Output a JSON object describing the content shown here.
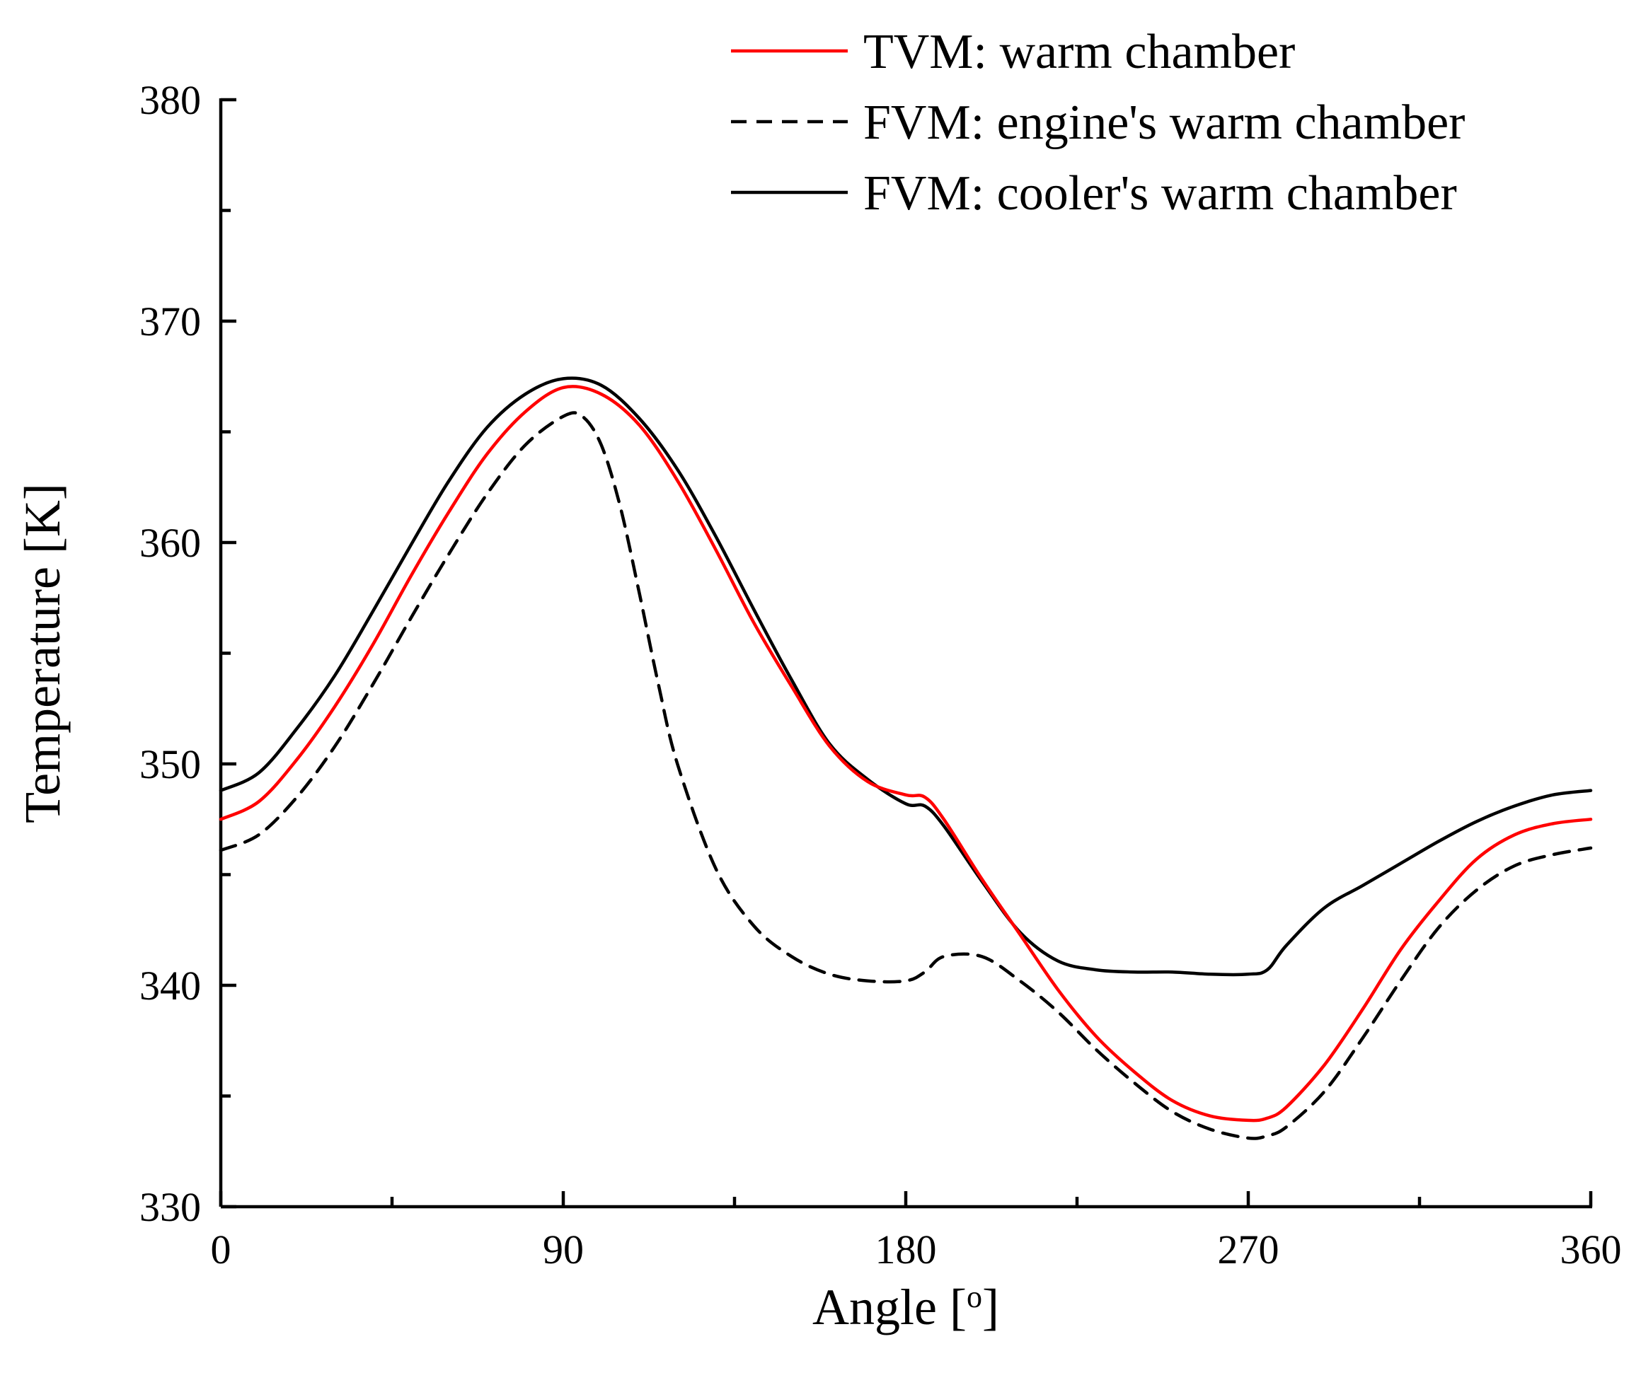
{
  "chart_data": {
    "type": "line",
    "xlabel": "Angle [",
    "xlabel_sup": "o",
    "xlabel_end": "]",
    "ylabel": "Temperature [K]",
    "xlim": [
      0,
      360
    ],
    "ylim": [
      330,
      380
    ],
    "xticks": [
      0,
      90,
      180,
      270,
      360
    ],
    "xtick_labels": [
      "0",
      "90",
      "180",
      "270",
      "360"
    ],
    "yticks": [
      330,
      340,
      350,
      360,
      370,
      380
    ],
    "ytick_labels": [
      "330",
      "340",
      "350",
      "360",
      "370",
      "380"
    ],
    "minor_x_step": 45,
    "minor_y_step": 5,
    "grid": false,
    "legend_position": "top-right",
    "series": [
      {
        "name": "TVM: warm chamber",
        "color": "#ff0000",
        "dash": "solid",
        "x": [
          0,
          10,
          20,
          30,
          40,
          50,
          60,
          70,
          80,
          90,
          100,
          110,
          120,
          130,
          140,
          150,
          160,
          170,
          180,
          185,
          190,
          200,
          210,
          220,
          230,
          240,
          250,
          260,
          270,
          275,
          280,
          290,
          300,
          310,
          320,
          330,
          340,
          350,
          360
        ],
        "y": [
          347.5,
          348.3,
          350.2,
          352.6,
          355.4,
          358.5,
          361.4,
          364.0,
          365.9,
          367.0,
          366.7,
          365.3,
          362.8,
          359.7,
          356.4,
          353.5,
          350.8,
          349.2,
          348.6,
          348.5,
          347.5,
          344.8,
          342.3,
          339.8,
          337.7,
          336.1,
          334.8,
          334.1,
          333.9,
          334.0,
          334.5,
          336.4,
          338.9,
          341.6,
          343.8,
          345.7,
          346.8,
          347.3,
          347.5
        ]
      },
      {
        "name": "FVM: engine's warm chamber",
        "color": "#000000",
        "dash": "dashed",
        "x": [
          0,
          10,
          20,
          30,
          40,
          50,
          60,
          70,
          80,
          90,
          95,
          100,
          105,
          110,
          115,
          120,
          130,
          140,
          150,
          160,
          170,
          180,
          185,
          190,
          200,
          210,
          220,
          230,
          240,
          250,
          260,
          270,
          275,
          280,
          290,
          300,
          310,
          320,
          330,
          340,
          350,
          360
        ],
        "y": [
          346.1,
          346.8,
          348.5,
          350.8,
          353.6,
          356.6,
          359.5,
          362.2,
          364.4,
          365.7,
          365.7,
          364.4,
          361.6,
          357.7,
          353.6,
          350.0,
          345.3,
          342.7,
          341.3,
          340.5,
          340.2,
          340.2,
          340.6,
          341.3,
          341.3,
          340.2,
          338.8,
          337.1,
          335.6,
          334.3,
          333.5,
          333.1,
          333.2,
          333.6,
          335.2,
          337.6,
          340.2,
          342.6,
          344.3,
          345.4,
          345.9,
          346.2
        ]
      },
      {
        "name": "FVM: cooler's warm chamber",
        "color": "#000000",
        "dash": "solid",
        "x": [
          0,
          10,
          20,
          30,
          40,
          50,
          60,
          70,
          80,
          90,
          100,
          110,
          120,
          130,
          140,
          150,
          160,
          170,
          180,
          185,
          190,
          200,
          210,
          220,
          230,
          240,
          250,
          260,
          270,
          275,
          280,
          290,
          300,
          310,
          320,
          330,
          340,
          350,
          360
        ],
        "y": [
          348.8,
          349.6,
          351.6,
          354.0,
          356.9,
          359.9,
          362.8,
          365.2,
          366.7,
          367.4,
          367.1,
          365.6,
          363.3,
          360.3,
          357.0,
          353.8,
          350.9,
          349.3,
          348.2,
          348.1,
          347.2,
          344.7,
          342.4,
          341.1,
          340.7,
          340.6,
          340.6,
          340.5,
          340.5,
          340.7,
          341.8,
          343.5,
          344.5,
          345.5,
          346.5,
          347.4,
          348.1,
          348.6,
          348.8
        ]
      }
    ]
  }
}
